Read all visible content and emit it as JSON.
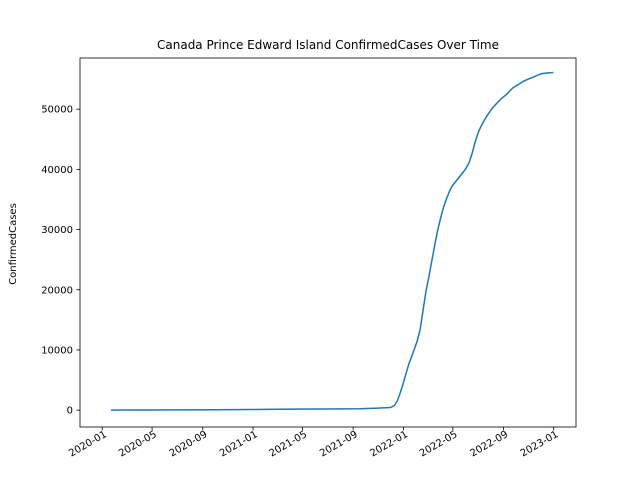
{
  "chart_data": {
    "type": "line",
    "title": "Canada Prince Edward Island ConfirmedCases Over Time",
    "xlabel": "",
    "ylabel": "ConfirmedCases",
    "x_ticks": [
      "2020-01",
      "2020-05",
      "2020-09",
      "2021-01",
      "2021-05",
      "2021-09",
      "2022-01",
      "2022-05",
      "2022-09",
      "2023-01"
    ],
    "y_ticks": [
      0,
      10000,
      20000,
      30000,
      40000,
      50000
    ],
    "xlim": [
      "2019-11-08",
      "2023-02-24"
    ],
    "ylim": [
      -2800,
      58500
    ],
    "grid": false,
    "line_color": "#1f77b4",
    "series": [
      {
        "x": [
          "2020-01-22",
          "2020-04-01",
          "2020-07-01",
          "2020-10-01",
          "2021-01-01",
          "2021-04-01",
          "2021-07-01",
          "2021-09-15",
          "2021-11-01",
          "2021-12-01",
          "2021-12-10",
          "2021-12-17",
          "2021-12-24",
          "2021-12-31",
          "2022-01-07",
          "2022-01-14",
          "2022-01-21",
          "2022-01-28",
          "2022-02-04",
          "2022-02-11",
          "2022-02-18",
          "2022-02-25",
          "2022-03-04",
          "2022-03-11",
          "2022-03-18",
          "2022-03-25",
          "2022-04-01",
          "2022-04-08",
          "2022-04-15",
          "2022-04-22",
          "2022-04-29",
          "2022-05-06",
          "2022-05-13",
          "2022-05-20",
          "2022-05-27",
          "2022-06-03",
          "2022-06-10",
          "2022-06-17",
          "2022-06-24",
          "2022-07-01",
          "2022-07-08",
          "2022-07-15",
          "2022-07-22",
          "2022-07-29",
          "2022-08-05",
          "2022-08-12",
          "2022-08-19",
          "2022-08-26",
          "2022-09-02",
          "2022-09-09",
          "2022-09-16",
          "2022-09-23",
          "2022-09-30",
          "2022-10-07",
          "2022-10-14",
          "2022-10-21",
          "2022-10-28",
          "2022-11-04",
          "2022-11-11",
          "2022-11-18",
          "2022-11-25",
          "2022-12-02",
          "2022-12-09",
          "2022-12-16",
          "2022-12-23",
          "2022-12-31"
        ],
        "values": [
          0,
          25,
          40,
          60,
          110,
          170,
          200,
          230,
          340,
          450,
          750,
          1500,
          2800,
          4300,
          6000,
          7600,
          8900,
          10200,
          11600,
          13500,
          16700,
          19800,
          22200,
          24800,
          27400,
          29800,
          31800,
          33600,
          35000,
          36200,
          37200,
          37800,
          38400,
          39000,
          39600,
          40300,
          41200,
          42700,
          44500,
          46000,
          47100,
          48000,
          48800,
          49500,
          50200,
          50700,
          51200,
          51700,
          52100,
          52500,
          53000,
          53500,
          53800,
          54100,
          54400,
          54700,
          54900,
          55100,
          55300,
          55500,
          55700,
          55900,
          55950,
          56000,
          56050,
          56100
        ]
      }
    ]
  }
}
